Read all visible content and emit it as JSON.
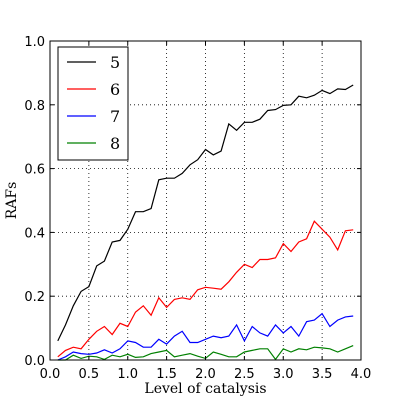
{
  "chart_data": {
    "type": "line",
    "xlabel": "Level of catalysis",
    "ylabel": "RAFs",
    "xlim": [
      0.0,
      4.0
    ],
    "ylim": [
      0.0,
      1.0
    ],
    "xticks": [
      "0.0",
      "0.5",
      "1.0",
      "1.5",
      "2.0",
      "2.5",
      "3.0",
      "3.5",
      "4.0"
    ],
    "yticks": [
      "0.0",
      "0.2",
      "0.4",
      "0.6",
      "0.8",
      "1.0"
    ],
    "grid": true,
    "legend_position": "top-left",
    "x": [
      0.1,
      0.2,
      0.3,
      0.4,
      0.5,
      0.6,
      0.7,
      0.8,
      0.9,
      1.0,
      1.1,
      1.2,
      1.3,
      1.4,
      1.5,
      1.6,
      1.7,
      1.8,
      1.9,
      2.0,
      2.1,
      2.2,
      2.3,
      2.4,
      2.5,
      2.6,
      2.7,
      2.8,
      2.9,
      3.0,
      3.1,
      3.2,
      3.3,
      3.4,
      3.5,
      3.6,
      3.7,
      3.8,
      3.9
    ],
    "series": [
      {
        "name": "5",
        "color": "#000000",
        "values": [
          0.06,
          0.11,
          0.17,
          0.215,
          0.23,
          0.295,
          0.31,
          0.37,
          0.375,
          0.41,
          0.465,
          0.465,
          0.475,
          0.565,
          0.57,
          0.57,
          0.585,
          0.612,
          0.628,
          0.66,
          0.643,
          0.655,
          0.74,
          0.72,
          0.745,
          0.745,
          0.755,
          0.782,
          0.785,
          0.798,
          0.8,
          0.827,
          0.822,
          0.83,
          0.845,
          0.835,
          0.85,
          0.848,
          0.862
        ]
      },
      {
        "name": "6",
        "color": "#ff0000",
        "values": [
          0.01,
          0.03,
          0.04,
          0.035,
          0.065,
          0.09,
          0.105,
          0.08,
          0.115,
          0.105,
          0.15,
          0.17,
          0.14,
          0.195,
          0.165,
          0.19,
          0.195,
          0.19,
          0.22,
          0.228,
          0.225,
          0.222,
          0.245,
          0.275,
          0.3,
          0.29,
          0.315,
          0.315,
          0.32,
          0.365,
          0.34,
          0.37,
          0.38,
          0.435,
          0.41,
          0.385,
          0.345,
          0.405,
          0.408
        ]
      },
      {
        "name": "7",
        "color": "#0000ff",
        "values": [
          0.0,
          0.01,
          0.025,
          0.02,
          0.018,
          0.022,
          0.032,
          0.022,
          0.035,
          0.06,
          0.055,
          0.04,
          0.04,
          0.065,
          0.05,
          0.075,
          0.09,
          0.055,
          0.055,
          0.065,
          0.075,
          0.07,
          0.075,
          0.11,
          0.06,
          0.105,
          0.085,
          0.075,
          0.11,
          0.085,
          0.105,
          0.075,
          0.12,
          0.125,
          0.145,
          0.105,
          0.125,
          0.135,
          0.138
        ]
      },
      {
        "name": "8",
        "color": "#008000",
        "values": [
          0.0,
          0.0,
          0.015,
          0.005,
          0.012,
          0.01,
          0.002,
          0.015,
          0.01,
          0.018,
          0.008,
          0.01,
          0.02,
          0.025,
          0.03,
          0.01,
          0.015,
          0.02,
          0.012,
          0.005,
          0.025,
          0.018,
          0.01,
          0.01,
          0.025,
          0.03,
          0.035,
          0.035,
          0.002,
          0.035,
          0.025,
          0.035,
          0.032,
          0.04,
          0.038,
          0.035,
          0.025,
          0.035,
          0.045
        ]
      }
    ]
  }
}
